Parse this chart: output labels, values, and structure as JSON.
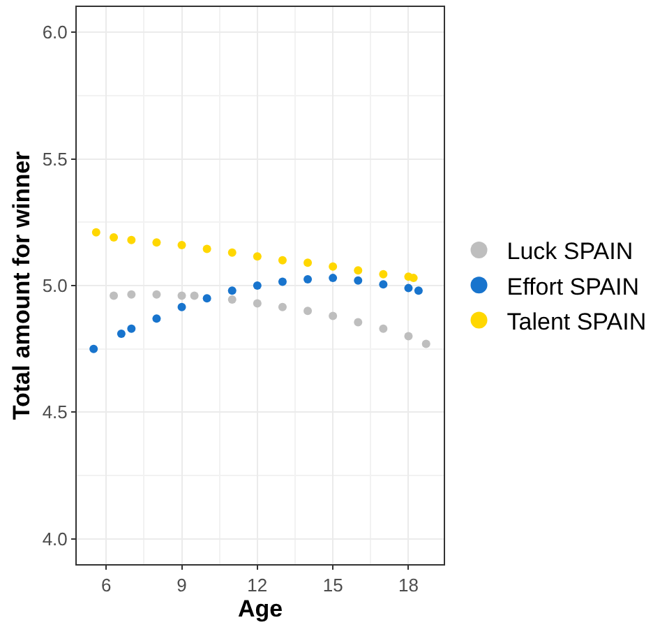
{
  "chart_data": {
    "type": "scatter",
    "xlabel": "Age",
    "ylabel": "Total amount for winner",
    "xlim": [
      4.83,
      19.4
    ],
    "xticks": [
      6,
      9,
      12,
      15,
      18
    ],
    "ylim": [
      3.9,
      6.1
    ],
    "yticks": [
      {
        "value": 4,
        "label": "4.0"
      },
      4.5,
      {
        "value": 5,
        "label": "5.0"
      },
      5.5,
      {
        "value": 6,
        "label": "6.0"
      }
    ],
    "grid": true,
    "legend": "right",
    "marker": "circle",
    "series": [
      {
        "name": "Luck SPAIN",
        "color": "#bebebe",
        "x": [
          6.3,
          7,
          8,
          9,
          9.5,
          11,
          12,
          13,
          14,
          15,
          16,
          17,
          18,
          18.7
        ],
        "values": [
          4.96,
          4.965,
          4.965,
          4.96,
          4.96,
          4.945,
          4.93,
          4.915,
          4.9,
          4.88,
          4.855,
          4.83,
          4.8,
          4.77
        ]
      },
      {
        "name": "Effort SPAIN",
        "color": "#1874cd",
        "x": [
          5.5,
          6.6,
          7,
          8,
          9,
          10,
          11,
          12,
          13,
          14,
          15,
          16,
          17,
          18,
          18.4
        ],
        "values": [
          4.75,
          4.81,
          4.83,
          4.87,
          4.915,
          4.95,
          4.98,
          5.0,
          5.015,
          5.025,
          5.03,
          5.02,
          5.005,
          4.99,
          4.98
        ]
      },
      {
        "name": "Talent SPAIN",
        "color": "#ffd700",
        "x": [
          5.6,
          6.3,
          7,
          8,
          9,
          10,
          11,
          12,
          13,
          14,
          15,
          16,
          17,
          18,
          18.2
        ],
        "values": [
          5.21,
          5.19,
          5.18,
          5.17,
          5.16,
          5.145,
          5.13,
          5.115,
          5.1,
          5.09,
          5.075,
          5.06,
          5.045,
          5.035,
          5.03
        ]
      }
    ]
  }
}
